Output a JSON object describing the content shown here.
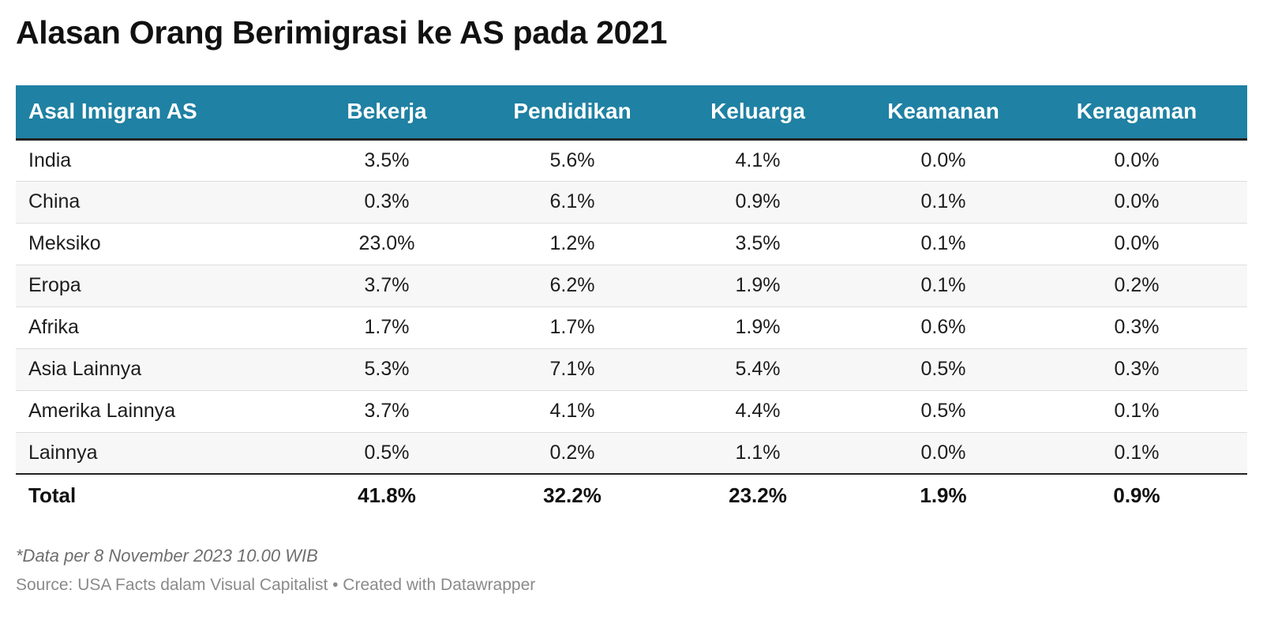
{
  "title": "Alasan Orang Berimigrasi ke AS pada 2021",
  "colors": {
    "header_bg": "#1f81a3",
    "header_text": "#ffffff",
    "row_alt": "#f7f7f7"
  },
  "table": {
    "headers": [
      "Asal Imigran AS",
      "Bekerja",
      "Pendidikan",
      "Keluarga",
      "Keamanan",
      "Keragaman"
    ],
    "rows": [
      [
        "India",
        "3.5%",
        "5.6%",
        "4.1%",
        "0.0%",
        "0.0%"
      ],
      [
        "China",
        "0.3%",
        "6.1%",
        "0.9%",
        "0.1%",
        "0.0%"
      ],
      [
        "Meksiko",
        "23.0%",
        "1.2%",
        "3.5%",
        "0.1%",
        "0.0%"
      ],
      [
        "Eropa",
        "3.7%",
        "6.2%",
        "1.9%",
        "0.1%",
        "0.2%"
      ],
      [
        "Afrika",
        "1.7%",
        "1.7%",
        "1.9%",
        "0.6%",
        "0.3%"
      ],
      [
        "Asia Lainnya",
        "5.3%",
        "7.1%",
        "5.4%",
        "0.5%",
        "0.3%"
      ],
      [
        "Amerika Lainnya",
        "3.7%",
        "4.1%",
        "4.4%",
        "0.5%",
        "0.1%"
      ],
      [
        "Lainnya",
        "0.5%",
        "0.2%",
        "1.1%",
        "0.0%",
        "0.1%"
      ]
    ],
    "total": [
      "Total",
      "41.8%",
      "32.2%",
      "23.2%",
      "1.9%",
      "0.9%"
    ]
  },
  "chart_data": {
    "type": "table",
    "title": "Alasan Orang Berimigrasi ke AS pada 2021",
    "columns": [
      "Asal Imigran AS",
      "Bekerja",
      "Pendidikan",
      "Keluarga",
      "Keamanan",
      "Keragaman"
    ],
    "categories": [
      "India",
      "China",
      "Meksiko",
      "Eropa",
      "Afrika",
      "Asia Lainnya",
      "Amerika Lainnya",
      "Lainnya"
    ],
    "series": [
      {
        "name": "Bekerja",
        "values": [
          3.5,
          0.3,
          23.0,
          3.7,
          1.7,
          5.3,
          3.7,
          0.5
        ]
      },
      {
        "name": "Pendidikan",
        "values": [
          5.6,
          6.1,
          1.2,
          6.2,
          1.7,
          7.1,
          4.1,
          0.2
        ]
      },
      {
        "name": "Keluarga",
        "values": [
          4.1,
          0.9,
          3.5,
          1.9,
          1.9,
          5.4,
          4.4,
          1.1
        ]
      },
      {
        "name": "Keamanan",
        "values": [
          0.0,
          0.1,
          0.1,
          0.1,
          0.6,
          0.5,
          0.5,
          0.0
        ]
      },
      {
        "name": "Keragaman",
        "values": [
          0.0,
          0.0,
          0.0,
          0.2,
          0.3,
          0.3,
          0.1,
          0.1
        ]
      }
    ],
    "totals": [
      41.8,
      32.2,
      23.2,
      1.9,
      0.9
    ]
  },
  "note": "*Data per 8 November 2023 10.00 WIB",
  "source": "Source: USA Facts dalam Visual Capitalist • Created with Datawrapper"
}
